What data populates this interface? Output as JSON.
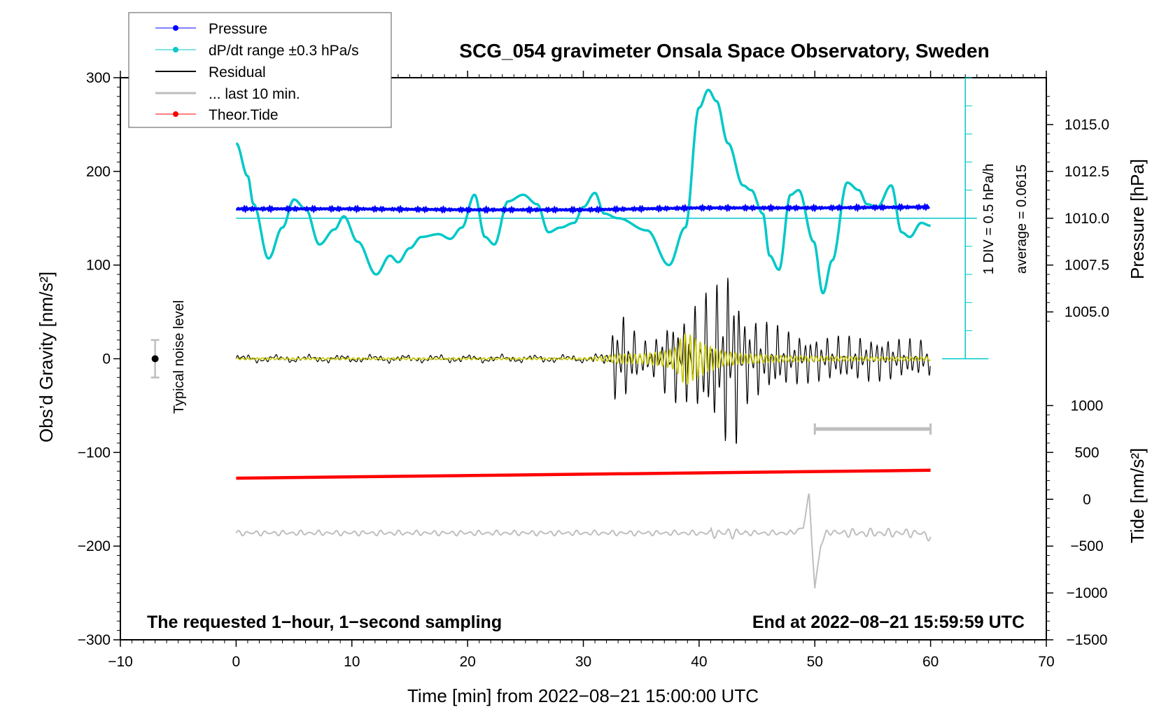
{
  "chart_data": {
    "type": "line",
    "title": "SCG_054 gravimeter Onsala Space Observatory, Sweden",
    "xlabel": "Time [min] from 2022−08−21 15:00:00 UTC",
    "ylabel_left": "Obs’d Gravity [nm/s²]",
    "ylabel_right_top": "Pressure [hPa]",
    "ylabel_right_bottom": "Tide [nm/s²]",
    "xlim": [
      -10,
      70
    ],
    "ylim": [
      -300,
      300
    ],
    "x_ticks": [
      "−10",
      "0",
      "10",
      "20",
      "30",
      "40",
      "50",
      "60",
      "70"
    ],
    "y_ticks_left": [
      "300",
      "200",
      "100",
      "0",
      "−100",
      "−200",
      "−300"
    ],
    "y_ticks_pressure": [
      "1015.0",
      "1012.5",
      "1010.0",
      "1007.5",
      "1005.0"
    ],
    "y_ticks_tide": [
      "1000",
      "500",
      "0",
      "−500",
      "−1000",
      "−1500"
    ],
    "annotation_left": "The requested 1−hour, 1−second sampling",
    "annotation_right": "End at 2022−08−21 15:59:59 UTC",
    "noise_label": "Typical noise level",
    "dpdt_scale_label": "1 DIV = 0.5 hPa/h",
    "dpdt_average_label": "average = 0.0615",
    "legend": [
      {
        "label": "Pressure",
        "color": "#0000ff"
      },
      {
        "label": "dP/dt range ±0.3 hPa/s",
        "color": "#00c8c8"
      },
      {
        "label": "Residual",
        "color": "#000000"
      },
      {
        "label": "... last 10 min.",
        "color": "#bebebe"
      },
      {
        "label": "Theor.Tide",
        "color": "#ff0000"
      }
    ],
    "series": [
      {
        "name": "Pressure",
        "color": "#0000ff",
        "axis": "pressure_hPa",
        "x": [
          0,
          10,
          20,
          30,
          40,
          50,
          60
        ],
        "y": [
          1010.5,
          1010.5,
          1010.45,
          1010.45,
          1010.55,
          1010.55,
          1010.6
        ]
      },
      {
        "name": "dP/dt",
        "color": "#00c8c8",
        "axis": "left_plot_units",
        "x": [
          0,
          1,
          1.5,
          2.8,
          4,
          5,
          6,
          7.2,
          8.5,
          9.3,
          10.5,
          12.1,
          13.3,
          14,
          15,
          16,
          17.5,
          18.5,
          19.5,
          20.6,
          21.5,
          22.3,
          23.5,
          24.8,
          26,
          27,
          28,
          29.2,
          30,
          31,
          31.8,
          33,
          35.5,
          37.4,
          38.8,
          40,
          40.8,
          41.5,
          42.5,
          43.8,
          44.5,
          45.5,
          46.1,
          46.9,
          47.9,
          48.6,
          49.9,
          50.7,
          51.5,
          52.8,
          53.8,
          54.5,
          55.4,
          56.6,
          57.5,
          58.2,
          59.2,
          60
        ],
        "y": [
          230,
          195,
          165,
          107,
          140,
          170,
          160,
          122,
          138,
          152,
          125,
          90,
          110,
          103,
          118,
          130,
          133,
          128,
          140,
          175,
          130,
          122,
          168,
          175,
          165,
          135,
          140,
          145,
          162,
          177,
          155,
          150,
          137,
          100,
          140,
          268,
          287,
          275,
          230,
          185,
          180,
          155,
          110,
          95,
          175,
          180,
          125,
          70,
          105,
          188,
          180,
          165,
          162,
          185,
          135,
          130,
          145,
          142
        ]
      },
      {
        "name": "Residual",
        "color": "#000000",
        "axis": "left_plot_units",
        "x": [
          0,
          10,
          20,
          30,
          32,
          33,
          35,
          36.5,
          37.5,
          38.5,
          40,
          41,
          42,
          42.5,
          43,
          44,
          46,
          48,
          50,
          55,
          60
        ],
        "y_envelope": [
          3,
          3,
          3,
          3,
          6,
          60,
          18,
          25,
          50,
          45,
          65,
          75,
          90,
          105,
          105,
          50,
          40,
          30,
          25,
          25,
          20
        ]
      },
      {
        "name": "Residual filtered",
        "color": "#c8c800",
        "axis": "left_plot_units",
        "x": [
          0,
          10,
          20,
          30,
          32,
          33,
          35,
          37,
          38,
          38.5,
          39,
          39.5,
          40.5,
          42,
          44,
          48,
          55,
          60
        ],
        "y_envelope": [
          1,
          1,
          1,
          1,
          3,
          5,
          5,
          8,
          12,
          25,
          28,
          23,
          15,
          8,
          5,
          3,
          2,
          2
        ]
      },
      {
        "name": "... last 10 min.",
        "color": "#bebebe",
        "axis": "left_plot_units",
        "x": [
          0,
          10,
          20,
          30,
          40,
          41,
          42,
          43,
          44,
          48,
          49,
          49.5,
          50,
          50.5,
          51,
          53,
          55,
          57,
          59,
          60
        ],
        "y": [
          -186,
          -186,
          -186,
          -186,
          -186,
          -186,
          -186,
          -186,
          -186,
          -186,
          -180,
          -145,
          -245,
          -200,
          -185,
          -186,
          -186,
          -186,
          -186,
          -190
        ]
      },
      {
        "name": "Theor.Tide",
        "color": "#ff0000",
        "axis": "tide_nm_s2",
        "x": [
          0,
          60
        ],
        "y": [
          225,
          310
        ]
      }
    ],
    "markers": {
      "noise_bar": {
        "x": -7,
        "center": 0,
        "half_range": 20
      },
      "last10_bar": {
        "x_start": 50,
        "x_end": 60,
        "level": -75
      },
      "dpdt_reference_line": {
        "level": 150
      }
    }
  }
}
